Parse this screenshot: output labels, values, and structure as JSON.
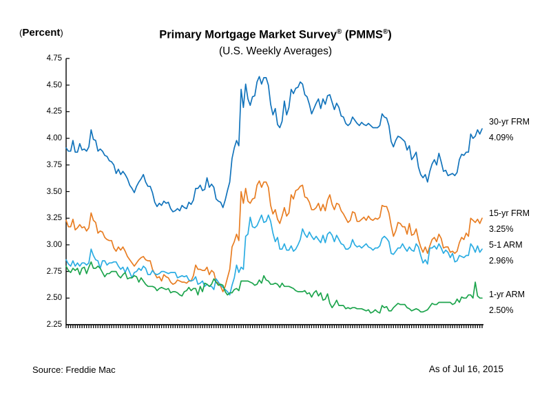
{
  "header": {
    "y_axis_unit_label": "(Percent)",
    "title": "Primary Mortgage Market Survey® (PMMS®)",
    "subtitle": "(U.S. Weekly Averages)"
  },
  "footer": {
    "source": "Source: Freddie Mac",
    "as_of": "As of Jul 16, 2015"
  },
  "chart_data": {
    "type": "line",
    "title": "Primary Mortgage Market Survey® (PMMS®)",
    "subtitle": "(U.S. Weekly Averages)",
    "ylabel": "(Percent)",
    "xlabel": "",
    "ylim": [
      2.25,
      4.75
    ],
    "y_ticks": [
      "4.75",
      "4.50",
      "4.25",
      "4.00",
      "3.75",
      "3.50",
      "3.25",
      "3.00",
      "2.75",
      "2.50",
      "2.25"
    ],
    "x_axis": {
      "labels_visible": false,
      "tick_marks": "dense weekly ticks, unlabeled"
    },
    "grid": false,
    "legend_position": "right of line ends",
    "series": [
      {
        "name": "30-yr FRM",
        "end_label": "4.09%",
        "color": "#1173bb",
        "values": [
          3.91,
          3.88,
          3.88,
          3.98,
          3.87,
          3.87,
          3.95,
          3.89,
          3.9,
          3.88,
          3.92,
          4.08,
          3.99,
          3.98,
          3.88,
          3.9,
          3.88,
          3.84,
          3.83,
          3.79,
          3.78,
          3.75,
          3.67,
          3.71,
          3.66,
          3.69,
          3.66,
          3.62,
          3.56,
          3.53,
          3.49,
          3.55,
          3.59,
          3.62,
          3.66,
          3.59,
          3.55,
          3.55,
          3.49,
          3.4,
          3.36,
          3.39,
          3.37,
          3.41,
          3.39,
          3.4,
          3.34,
          3.31,
          3.32,
          3.34,
          3.32,
          3.37,
          3.35,
          3.34,
          3.4,
          3.38,
          3.42,
          3.53,
          3.53,
          3.56,
          3.51,
          3.52,
          3.63,
          3.54,
          3.57,
          3.54,
          3.43,
          3.41,
          3.4,
          3.35,
          3.42,
          3.51,
          3.59,
          3.81,
          3.91,
          3.98,
          3.93,
          4.46,
          4.29,
          4.51,
          4.37,
          4.31,
          4.39,
          4.4,
          4.53,
          4.58,
          4.51,
          4.57,
          4.57,
          4.5,
          4.32,
          4.22,
          4.28,
          4.13,
          4.1,
          4.16,
          4.35,
          4.22,
          4.29,
          4.46,
          4.42,
          4.47,
          4.48,
          4.53,
          4.51,
          4.41,
          4.39,
          4.32,
          4.23,
          4.28,
          4.33,
          4.37,
          4.28,
          4.37,
          4.32,
          4.4,
          4.41,
          4.34,
          4.27,
          4.33,
          4.29,
          4.21,
          4.2,
          4.14,
          4.12,
          4.14,
          4.2,
          4.17,
          4.14,
          4.12,
          4.15,
          4.13,
          4.12,
          4.14,
          4.12,
          4.1,
          4.1,
          4.1,
          4.12,
          4.23,
          4.2,
          4.19,
          4.12,
          3.97,
          3.92,
          3.98,
          4.02,
          4.01,
          3.99,
          3.97,
          3.89,
          3.93,
          3.8,
          3.83,
          3.87,
          3.73,
          3.66,
          3.63,
          3.66,
          3.59,
          3.69,
          3.76,
          3.8,
          3.75,
          3.86,
          3.78,
          3.69,
          3.7,
          3.65,
          3.66,
          3.67,
          3.65,
          3.68,
          3.8,
          3.85,
          3.84,
          3.87,
          3.87,
          4.04,
          4.0,
          4.02,
          4.08,
          4.04,
          4.09
        ]
      },
      {
        "name": "15-yr FRM",
        "end_label": "3.25%",
        "color": "#e87d22",
        "values": [
          3.23,
          3.17,
          3.17,
          3.24,
          3.14,
          3.16,
          3.19,
          3.16,
          3.17,
          3.13,
          3.16,
          3.3,
          3.23,
          3.21,
          3.11,
          3.13,
          3.12,
          3.07,
          3.05,
          3.04,
          3.04,
          2.97,
          2.94,
          2.98,
          2.95,
          2.98,
          2.94,
          2.89,
          2.86,
          2.83,
          2.8,
          2.83,
          2.86,
          2.88,
          2.89,
          2.86,
          2.85,
          2.85,
          2.77,
          2.73,
          2.69,
          2.7,
          2.66,
          2.72,
          2.7,
          2.69,
          2.65,
          2.63,
          2.64,
          2.67,
          2.66,
          2.65,
          2.65,
          2.64,
          2.66,
          2.66,
          2.71,
          2.81,
          2.77,
          2.77,
          2.76,
          2.76,
          2.79,
          2.72,
          2.76,
          2.74,
          2.65,
          2.64,
          2.61,
          2.56,
          2.61,
          2.69,
          2.77,
          2.98,
          3.03,
          3.1,
          3.04,
          3.5,
          3.39,
          3.53,
          3.41,
          3.39,
          3.43,
          3.44,
          3.56,
          3.6,
          3.54,
          3.59,
          3.59,
          3.54,
          3.37,
          3.29,
          3.33,
          3.24,
          3.2,
          3.27,
          3.35,
          3.27,
          3.3,
          3.47,
          3.43,
          3.51,
          3.52,
          3.55,
          3.56,
          3.45,
          3.44,
          3.4,
          3.33,
          3.33,
          3.35,
          3.39,
          3.32,
          3.38,
          3.32,
          3.42,
          3.47,
          3.38,
          3.33,
          3.39,
          3.38,
          3.32,
          3.29,
          3.25,
          3.21,
          3.23,
          3.31,
          3.3,
          3.22,
          3.22,
          3.24,
          3.26,
          3.23,
          3.27,
          3.24,
          3.23,
          3.25,
          3.24,
          3.26,
          3.37,
          3.36,
          3.36,
          3.3,
          3.18,
          3.08,
          3.13,
          3.21,
          3.2,
          3.17,
          3.17,
          3.1,
          3.2,
          3.09,
          3.1,
          3.15,
          3.05,
          2.98,
          2.93,
          2.98,
          2.92,
          2.99,
          3.05,
          3.07,
          3.03,
          3.1,
          3.06,
          2.97,
          2.98,
          2.98,
          2.93,
          2.94,
          2.92,
          2.94,
          3.02,
          3.07,
          3.05,
          3.11,
          3.08,
          3.25,
          3.23,
          3.21,
          3.24,
          3.2,
          3.25
        ]
      },
      {
        "name": "5-1 ARM",
        "end_label": "2.96%",
        "color": "#2aace2",
        "values": [
          2.86,
          2.82,
          2.8,
          2.85,
          2.8,
          2.83,
          2.8,
          2.83,
          2.83,
          2.81,
          2.83,
          2.96,
          2.9,
          2.86,
          2.85,
          2.78,
          2.85,
          2.85,
          2.81,
          2.83,
          2.83,
          2.84,
          2.84,
          2.8,
          2.77,
          2.79,
          2.74,
          2.79,
          2.74,
          2.69,
          2.74,
          2.75,
          2.78,
          2.76,
          2.8,
          2.78,
          2.72,
          2.72,
          2.76,
          2.73,
          2.72,
          2.73,
          2.75,
          2.75,
          2.74,
          2.73,
          2.74,
          2.74,
          2.74,
          2.69,
          2.7,
          2.71,
          2.7,
          2.71,
          2.67,
          2.66,
          2.67,
          2.7,
          2.63,
          2.64,
          2.66,
          2.61,
          2.63,
          2.61,
          2.61,
          2.58,
          2.68,
          2.65,
          2.62,
          2.6,
          2.58,
          2.56,
          2.53,
          2.62,
          2.69,
          2.81,
          2.74,
          2.79,
          2.77,
          3.08,
          3.1,
          3.26,
          3.17,
          3.16,
          3.18,
          3.23,
          3.28,
          3.21,
          3.22,
          3.28,
          3.22,
          3.11,
          3.03,
          3.07,
          2.96,
          2.96,
          3.01,
          2.95,
          2.95,
          2.99,
          2.94,
          2.96,
          3.0,
          3.05,
          3.15,
          3.1,
          3.07,
          3.12,
          3.08,
          3.05,
          3.08,
          3.05,
          3.02,
          3.09,
          3.02,
          3.1,
          3.12,
          3.09,
          3.03,
          3.09,
          3.05,
          3.01,
          3.0,
          2.96,
          2.96,
          2.98,
          3.05,
          3.0,
          2.98,
          2.99,
          2.97,
          2.99,
          3.01,
          2.98,
          2.97,
          2.95,
          2.97,
          2.97,
          2.99,
          3.06,
          3.08,
          3.06,
          3.03,
          2.92,
          2.91,
          2.94,
          2.97,
          2.97,
          3.01,
          2.97,
          2.94,
          2.98,
          2.95,
          2.94,
          3.01,
          2.98,
          2.9,
          2.83,
          2.86,
          2.82,
          2.97,
          2.97,
          2.99,
          2.96,
          3.01,
          2.97,
          2.92,
          2.95,
          2.93,
          2.88,
          2.92,
          2.84,
          2.85,
          2.9,
          2.89,
          2.88,
          2.9,
          2.9,
          3.01,
          2.98,
          2.93,
          2.99,
          2.93,
          2.96
        ]
      },
      {
        "name": "1-yr ARM",
        "end_label": "2.50%",
        "color": "#1ca44c",
        "values": [
          2.8,
          2.76,
          2.74,
          2.78,
          2.76,
          2.78,
          2.72,
          2.78,
          2.79,
          2.73,
          2.79,
          2.84,
          2.78,
          2.78,
          2.8,
          2.78,
          2.74,
          2.7,
          2.73,
          2.73,
          2.75,
          2.75,
          2.75,
          2.71,
          2.69,
          2.72,
          2.74,
          2.68,
          2.69,
          2.69,
          2.71,
          2.7,
          2.65,
          2.69,
          2.66,
          2.63,
          2.61,
          2.61,
          2.61,
          2.6,
          2.57,
          2.59,
          2.6,
          2.59,
          2.58,
          2.59,
          2.55,
          2.56,
          2.56,
          2.55,
          2.53,
          2.52,
          2.56,
          2.57,
          2.6,
          2.57,
          2.59,
          2.59,
          2.53,
          2.61,
          2.56,
          2.64,
          2.63,
          2.61,
          2.63,
          2.68,
          2.65,
          2.62,
          2.63,
          2.62,
          2.56,
          2.53,
          2.55,
          2.55,
          2.58,
          2.59,
          2.57,
          2.66,
          2.66,
          2.66,
          2.66,
          2.65,
          2.64,
          2.62,
          2.63,
          2.67,
          2.64,
          2.71,
          2.67,
          2.66,
          2.63,
          2.63,
          2.64,
          2.63,
          2.6,
          2.64,
          2.61,
          2.61,
          2.61,
          2.6,
          2.59,
          2.57,
          2.56,
          2.56,
          2.56,
          2.57,
          2.54,
          2.55,
          2.51,
          2.55,
          2.57,
          2.52,
          2.55,
          2.48,
          2.49,
          2.54,
          2.45,
          2.41,
          2.44,
          2.48,
          2.43,
          2.43,
          2.43,
          2.4,
          2.41,
          2.4,
          2.41,
          2.41,
          2.4,
          2.4,
          2.4,
          2.39,
          2.38,
          2.39,
          2.36,
          2.37,
          2.39,
          2.37,
          2.36,
          2.43,
          2.41,
          2.42,
          2.38,
          2.38,
          2.41,
          2.43,
          2.45,
          2.44,
          2.44,
          2.44,
          2.41,
          2.4,
          2.38,
          2.39,
          2.4,
          2.39,
          2.37,
          2.37,
          2.38,
          2.39,
          2.42,
          2.45,
          2.44,
          2.44,
          2.46,
          2.46,
          2.46,
          2.46,
          2.46,
          2.46,
          2.44,
          2.45,
          2.49,
          2.46,
          2.51,
          2.5,
          2.5,
          2.53,
          2.53,
          2.5,
          2.65,
          2.52,
          2.5,
          2.5
        ]
      }
    ]
  }
}
